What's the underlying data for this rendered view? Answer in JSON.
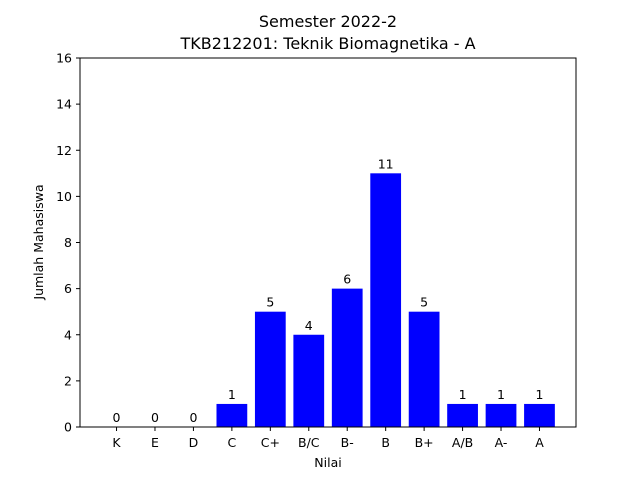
{
  "chart_data": {
    "type": "bar",
    "title_line1": "Semester 2022-2",
    "title_line2": "TKB212201: Teknik Biomagnetika - A",
    "xlabel": "Nilai",
    "ylabel": "Jumlah Mahasiswa",
    "categories": [
      "K",
      "E",
      "D",
      "C",
      "C+",
      "B/C",
      "B-",
      "B",
      "B+",
      "A/B",
      "A-",
      "A"
    ],
    "values": [
      0,
      0,
      0,
      1,
      5,
      4,
      6,
      11,
      5,
      1,
      1,
      1
    ],
    "data_labels": [
      "0",
      "0",
      "0",
      "1",
      "5",
      "4",
      "6",
      "11",
      "5",
      "1",
      "1",
      "1"
    ],
    "ylim": [
      0,
      16
    ],
    "yticks": [
      0,
      2,
      4,
      6,
      8,
      10,
      12,
      14,
      16
    ],
    "ytick_labels": [
      "0",
      "2",
      "4",
      "6",
      "8",
      "10",
      "12",
      "14",
      "16"
    ],
    "bar_color": "#0000ff",
    "grid": false,
    "legend": false
  }
}
